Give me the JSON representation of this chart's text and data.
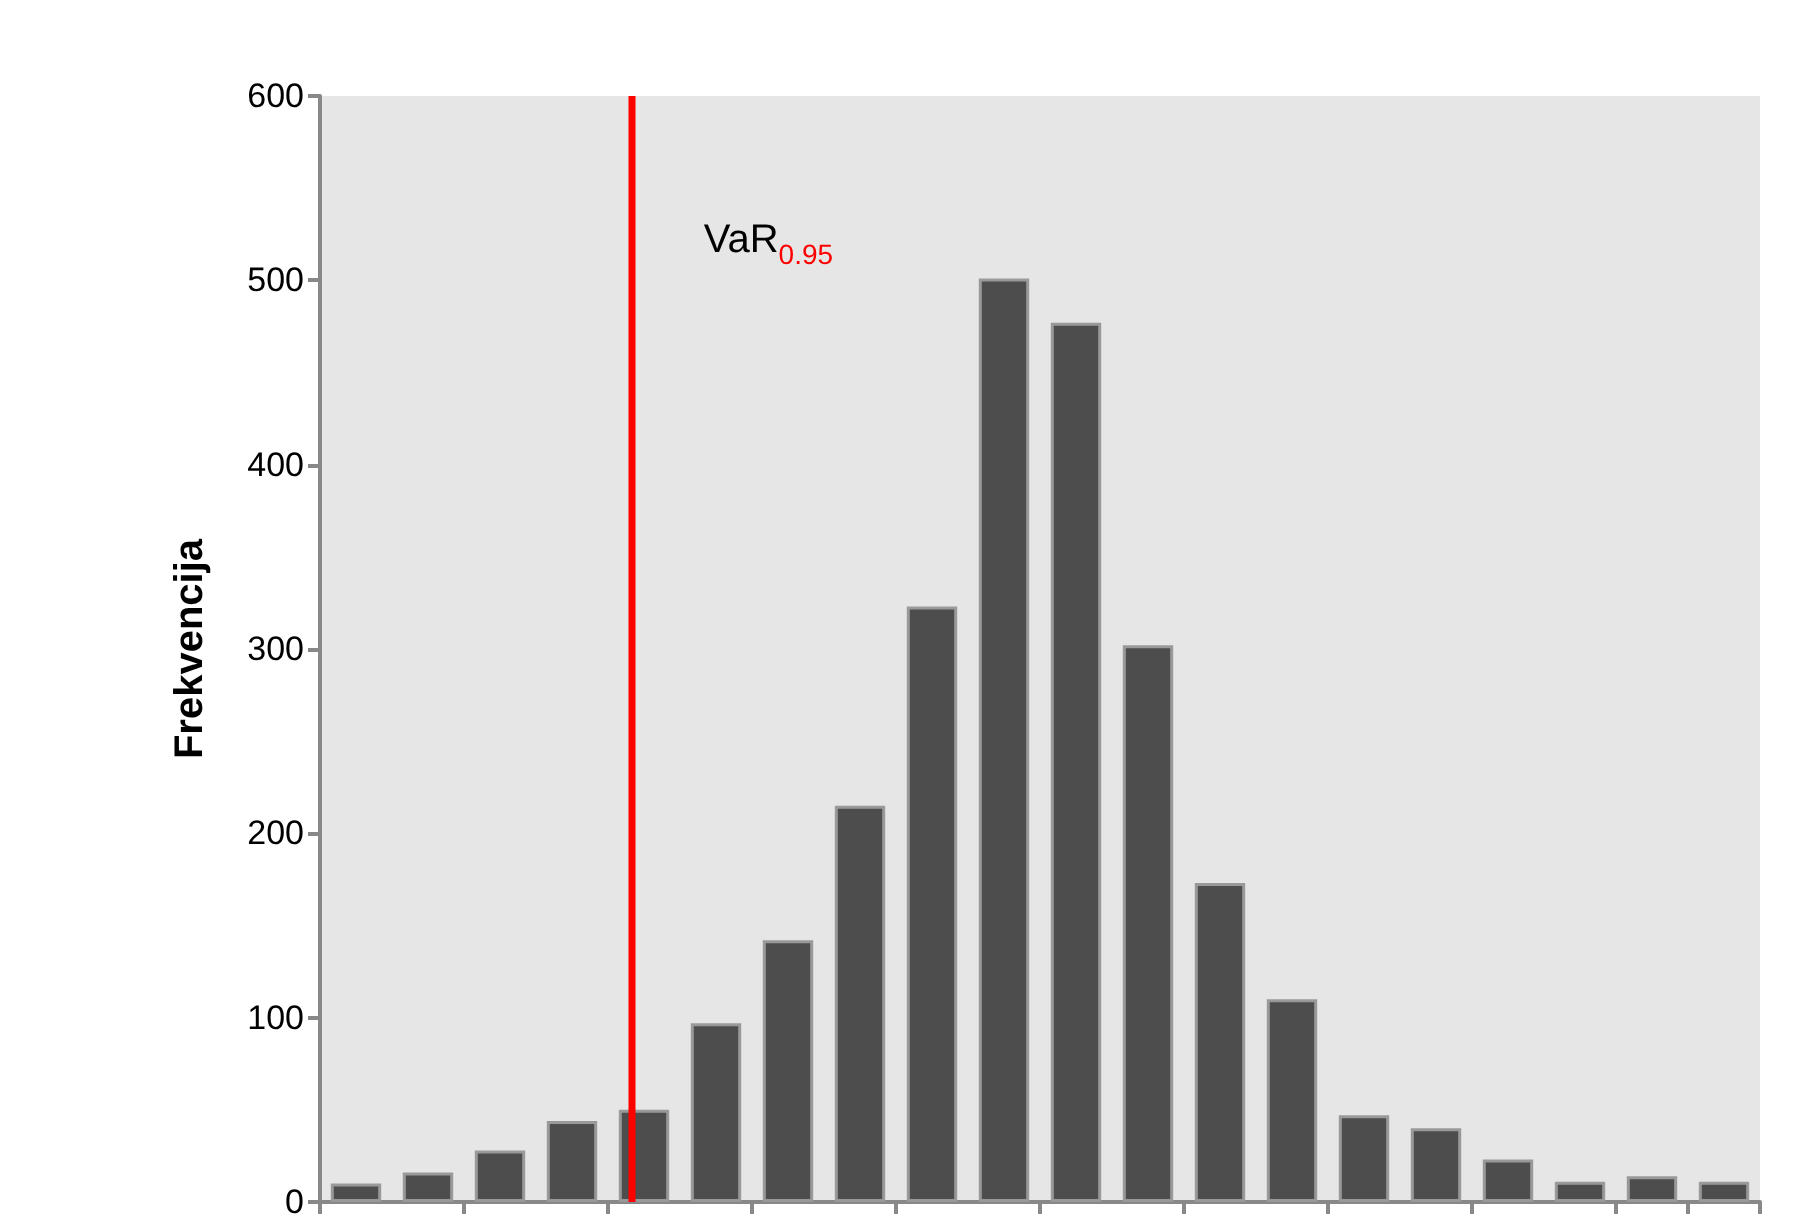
{
  "chart_data": {
    "type": "bar",
    "ylabel": "Frekvencija",
    "categories": [
      null,
      null,
      null,
      null,
      null,
      null,
      null,
      null,
      null,
      null,
      null,
      null,
      null,
      null,
      null,
      null,
      null,
      null,
      null,
      null
    ],
    "values": [
      10,
      16,
      28,
      44,
      50,
      97,
      142,
      215,
      323,
      501,
      477,
      302,
      173,
      110,
      47,
      40,
      23,
      11,
      14,
      11
    ],
    "color": "#4d4d4d",
    "ylim": [
      0,
      600
    ],
    "yticks": [
      0,
      100,
      200,
      300,
      400,
      500,
      600
    ],
    "tick_labels": "y",
    "grid": false,
    "ref_lines": [
      {
        "axis": "x",
        "label": "VaR$_{0.95}$",
        "color": "#ff0000"
      }
    ]
  }
}
